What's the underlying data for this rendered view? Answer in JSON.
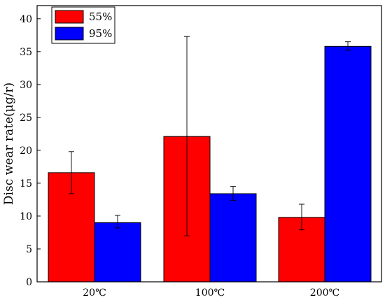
{
  "chart_data": {
    "type": "bar",
    "categories": [
      "20℃",
      "100℃",
      "200℃"
    ],
    "series": [
      {
        "name": "55%",
        "color": "#ff0000",
        "values": [
          16.6,
          22.1,
          9.8
        ],
        "error_low": [
          13.4,
          7.0,
          7.9
        ],
        "error_high": [
          19.8,
          37.3,
          11.8
        ]
      },
      {
        "name": "95%",
        "color": "#0000ff",
        "values": [
          9.0,
          13.4,
          35.8
        ],
        "error_low": [
          8.2,
          12.4,
          35.2
        ],
        "error_high": [
          10.1,
          14.5,
          36.5
        ]
      }
    ],
    "ylabel": "Disc wear rate(μg/r)",
    "xlabel": "",
    "ylim": [
      0,
      42
    ],
    "yticks": [
      0,
      5,
      10,
      15,
      20,
      25,
      30,
      35,
      40
    ],
    "legend_position": "top-left",
    "grid": false
  }
}
